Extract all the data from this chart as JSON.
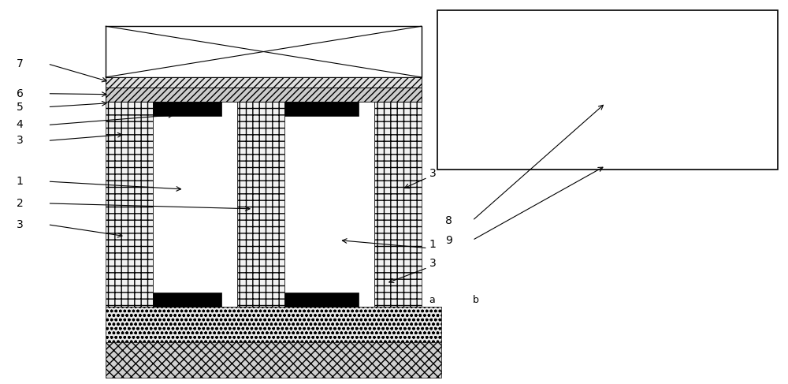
{
  "fig_width": 10.0,
  "fig_height": 4.87,
  "bg_color": "#ffffff",
  "lw_ann": 0.8,
  "fontsize": 10
}
